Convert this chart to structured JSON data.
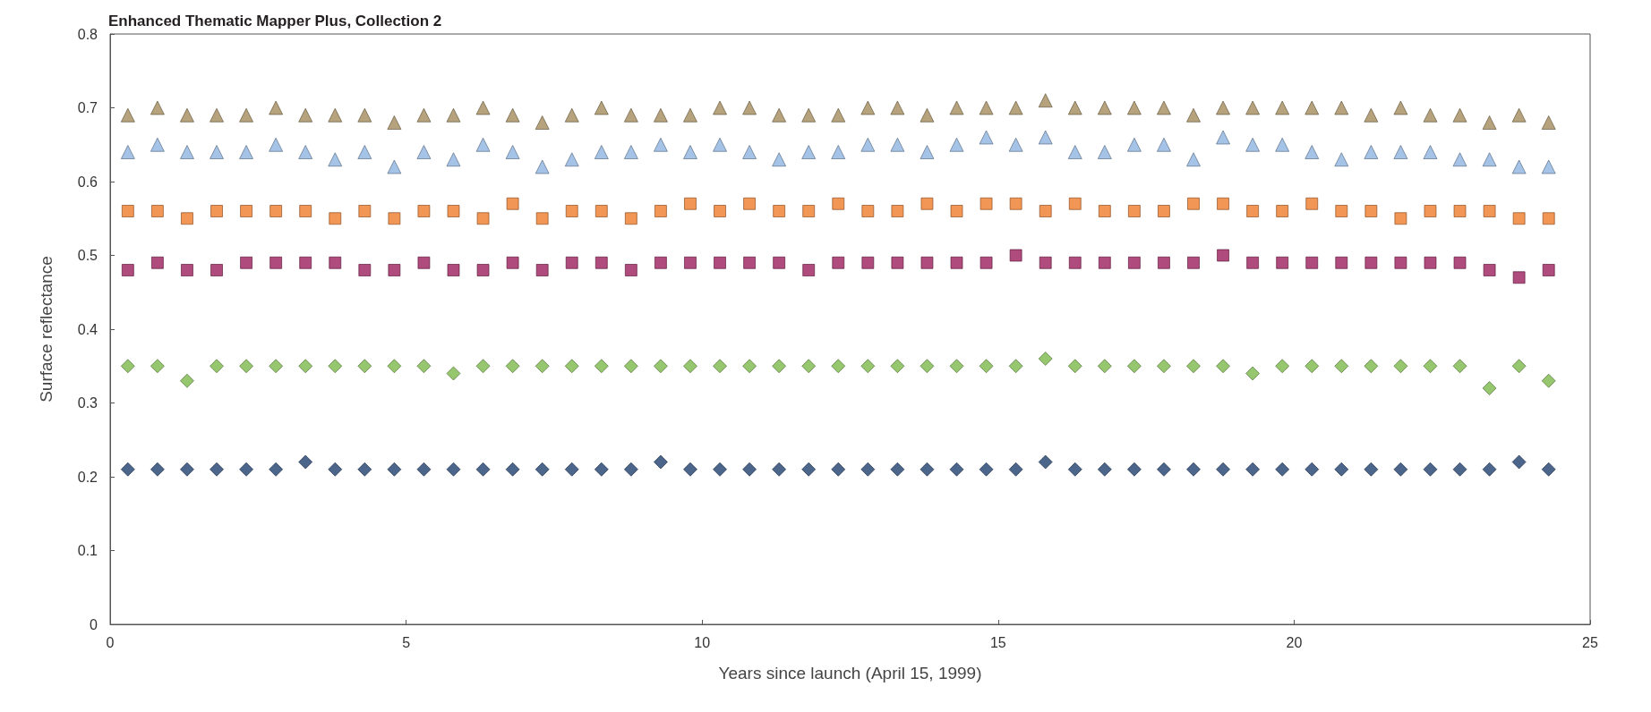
{
  "chart_data": {
    "type": "scatter",
    "title": "Enhanced Thematic Mapper Plus, Collection 2",
    "xlabel": "Years since launch (April 15, 1999)",
    "ylabel": "Surface reflectance",
    "xlim": [
      0,
      25
    ],
    "xticks": [
      0,
      5,
      10,
      15,
      20,
      25
    ],
    "ylim": [
      0,
      0.8
    ],
    "yticks": [
      0,
      0.1,
      0.2,
      0.3,
      0.4,
      0.5,
      0.6,
      0.7,
      0.8
    ],
    "grid": false,
    "x": [
      0.3,
      0.8,
      1.3,
      1.8,
      2.3,
      2.8,
      3.3,
      3.8,
      4.3,
      4.8,
      5.3,
      5.8,
      6.3,
      6.8,
      7.3,
      7.8,
      8.3,
      8.8,
      9.3,
      9.8,
      10.3,
      10.8,
      11.3,
      11.8,
      12.3,
      12.8,
      13.3,
      13.8,
      14.3,
      14.8,
      15.3,
      15.8,
      16.3,
      16.8,
      17.3,
      17.8,
      18.3,
      18.8,
      19.3,
      19.8,
      20.3,
      20.8,
      21.3,
      21.8,
      22.3,
      22.8,
      23.3,
      23.8,
      24.3
    ],
    "series": [
      {
        "color": "#a48c5c",
        "marker": "triangle",
        "values": [
          0.69,
          0.7,
          0.69,
          0.69,
          0.69,
          0.7,
          0.69,
          0.69,
          0.69,
          0.68,
          0.69,
          0.69,
          0.7,
          0.69,
          0.68,
          0.69,
          0.7,
          0.69,
          0.69,
          0.69,
          0.7,
          0.7,
          0.69,
          0.69,
          0.69,
          0.7,
          0.7,
          0.69,
          0.7,
          0.7,
          0.7,
          0.71,
          0.7,
          0.7,
          0.7,
          0.7,
          0.69,
          0.7,
          0.7,
          0.7,
          0.7,
          0.7,
          0.69,
          0.7,
          0.69,
          0.69,
          0.68,
          0.69,
          0.68
        ]
      },
      {
        "color": "#8eb4e0",
        "marker": "triangle",
        "values": [
          0.64,
          0.65,
          0.64,
          0.64,
          0.64,
          0.65,
          0.64,
          0.63,
          0.64,
          0.62,
          0.64,
          0.63,
          0.65,
          0.64,
          0.62,
          0.63,
          0.64,
          0.64,
          0.65,
          0.64,
          0.65,
          0.64,
          0.63,
          0.64,
          0.64,
          0.65,
          0.65,
          0.64,
          0.65,
          0.66,
          0.65,
          0.66,
          0.64,
          0.64,
          0.65,
          0.65,
          0.63,
          0.66,
          0.65,
          0.65,
          0.64,
          0.63,
          0.64,
          0.64,
          0.64,
          0.63,
          0.63,
          0.62,
          0.62
        ]
      },
      {
        "color": "#ef7c2a",
        "marker": "square",
        "values": [
          0.56,
          0.56,
          0.55,
          0.56,
          0.56,
          0.56,
          0.56,
          0.55,
          0.56,
          0.55,
          0.56,
          0.56,
          0.55,
          0.57,
          0.55,
          0.56,
          0.56,
          0.55,
          0.56,
          0.57,
          0.56,
          0.57,
          0.56,
          0.56,
          0.57,
          0.56,
          0.56,
          0.57,
          0.56,
          0.57,
          0.57,
          0.56,
          0.57,
          0.56,
          0.56,
          0.56,
          0.57,
          0.57,
          0.56,
          0.56,
          0.57,
          0.56,
          0.56,
          0.55,
          0.56,
          0.56,
          0.56,
          0.55,
          0.55
        ]
      },
      {
        "color": "#9b1f5c",
        "marker": "square",
        "values": [
          0.48,
          0.49,
          0.48,
          0.48,
          0.49,
          0.49,
          0.49,
          0.49,
          0.48,
          0.48,
          0.49,
          0.48,
          0.48,
          0.49,
          0.48,
          0.49,
          0.49,
          0.48,
          0.49,
          0.49,
          0.49,
          0.49,
          0.49,
          0.48,
          0.49,
          0.49,
          0.49,
          0.49,
          0.49,
          0.49,
          0.5,
          0.49,
          0.49,
          0.49,
          0.49,
          0.49,
          0.49,
          0.5,
          0.49,
          0.49,
          0.49,
          0.49,
          0.49,
          0.49,
          0.49,
          0.49,
          0.48,
          0.47,
          0.48
        ]
      },
      {
        "color": "#7cb84a",
        "marker": "diamond",
        "values": [
          0.35,
          0.35,
          0.33,
          0.35,
          0.35,
          0.35,
          0.35,
          0.35,
          0.35,
          0.35,
          0.35,
          0.34,
          0.35,
          0.35,
          0.35,
          0.35,
          0.35,
          0.35,
          0.35,
          0.35,
          0.35,
          0.35,
          0.35,
          0.35,
          0.35,
          0.35,
          0.35,
          0.35,
          0.35,
          0.35,
          0.35,
          0.36,
          0.35,
          0.35,
          0.35,
          0.35,
          0.35,
          0.35,
          0.34,
          0.35,
          0.35,
          0.35,
          0.35,
          0.35,
          0.35,
          0.35,
          0.32,
          0.35,
          0.33
        ]
      },
      {
        "color": "#1f3f6e",
        "marker": "diamond",
        "values": [
          0.21,
          0.21,
          0.21,
          0.21,
          0.21,
          0.21,
          0.22,
          0.21,
          0.21,
          0.21,
          0.21,
          0.21,
          0.21,
          0.21,
          0.21,
          0.21,
          0.21,
          0.21,
          0.22,
          0.21,
          0.21,
          0.21,
          0.21,
          0.21,
          0.21,
          0.21,
          0.21,
          0.21,
          0.21,
          0.21,
          0.21,
          0.22,
          0.21,
          0.21,
          0.21,
          0.21,
          0.21,
          0.21,
          0.21,
          0.21,
          0.21,
          0.21,
          0.21,
          0.21,
          0.21,
          0.21,
          0.21,
          0.22,
          0.21
        ]
      }
    ]
  }
}
